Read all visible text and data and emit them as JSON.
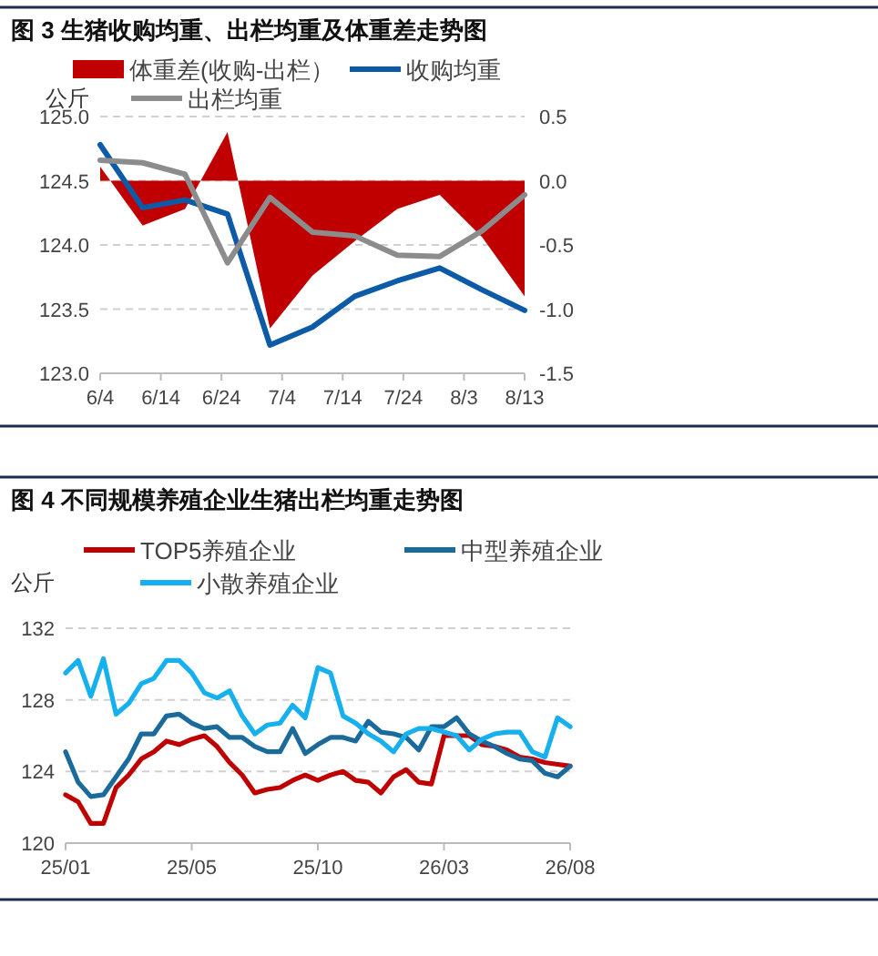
{
  "chart_data": [
    {
      "type": "line",
      "title": "图 3 生猪收购均重、出栏均重及体重差走势图",
      "ylabel": "公斤",
      "legend": "top",
      "grid": "y",
      "x": [
        "--06-04",
        "--06-11",
        "--06-18",
        "--06-25",
        "--07-02",
        "--07-09",
        "--07-16",
        "--07-23",
        "--07-30",
        "--08-06",
        "--08-13"
      ],
      "xlim": [
        "--06-04",
        "--08-13"
      ],
      "xticks": [
        {
          "value": "--06-04",
          "label": "6/4"
        },
        {
          "value": "--06-14",
          "label": "6/14"
        },
        {
          "value": "--06-24",
          "label": "6/24"
        },
        {
          "value": "--07-04",
          "label": "7/4"
        },
        {
          "value": "--07-14",
          "label": "7/14"
        },
        {
          "value": "--07-24",
          "label": "7/24"
        },
        {
          "value": "--08-03",
          "label": "8/3"
        },
        {
          "value": "--08-13",
          "label": "8/13"
        }
      ],
      "ylim": [
        123,
        125
      ],
      "yticks": [
        {
          "value": 123,
          "label": "123.0"
        },
        {
          "value": 123.5,
          "label": "123.5"
        },
        {
          "value": 124,
          "label": "124.0"
        },
        {
          "value": 124.5,
          "label": "124.5"
        },
        {
          "value": 125,
          "label": "125.0"
        }
      ],
      "y2lim": [
        -1.5,
        0.5
      ],
      "y2ticks": [
        {
          "value": -1.5,
          "label": "-1.5"
        },
        {
          "value": -1,
          "label": "-1.0"
        },
        {
          "value": -0.5,
          "label": "-0.5"
        },
        {
          "value": 0,
          "label": "0.0"
        },
        {
          "value": 0.5,
          "label": "0.5"
        }
      ],
      "series": [
        {
          "name": "体重差(收购-出栏）",
          "type": "area",
          "axis": "y2",
          "color": "#c00000",
          "values": [
            0.11,
            -0.35,
            -0.22,
            0.38,
            -1.15,
            -0.74,
            -0.47,
            -0.22,
            -0.11,
            -0.44,
            -0.9
          ]
        },
        {
          "name": "收购均重",
          "type": "line",
          "color": "#0d5aa7",
          "values": [
            124.78,
            124.29,
            124.35,
            124.24,
            123.22,
            123.36,
            123.6,
            123.72,
            123.82,
            123.65,
            123.49
          ]
        },
        {
          "name": "出栏均重",
          "type": "line",
          "color": "#8c8c8c",
          "values": [
            124.66,
            124.64,
            124.55,
            123.86,
            124.37,
            124.1,
            124.07,
            123.92,
            123.91,
            124.11,
            124.39
          ]
        }
      ]
    },
    {
      "type": "line",
      "title": "图 4 不同规模养殖企业生猪出栏均重走势图",
      "ylabel": "公斤",
      "legend": "top",
      "grid": "y",
      "categories": [
        "25/01",
        null,
        null,
        null,
        null,
        null,
        null,
        null,
        null,
        null,
        "25/05",
        null,
        null,
        null,
        null,
        null,
        null,
        null,
        null,
        null,
        "25/10",
        null,
        null,
        null,
        null,
        null,
        null,
        null,
        null,
        null,
        "26/03",
        null,
        null,
        null,
        null,
        null,
        null,
        null,
        null,
        null,
        "26/08"
      ],
      "ylim": [
        120,
        132
      ],
      "yticks": [
        120,
        124,
        128,
        132
      ],
      "series": [
        {
          "name": "TOP5养殖企业",
          "color": "#c00000",
          "values": [
            122.7,
            122.3,
            121.1,
            121.1,
            123.1,
            123.8,
            124.7,
            125.1,
            125.7,
            125.5,
            125.8,
            126.0,
            125.4,
            124.5,
            123.8,
            122.8,
            123.0,
            123.1,
            123.5,
            123.8,
            123.5,
            123.8,
            124.0,
            123.5,
            123.4,
            122.8,
            123.7,
            124.1,
            123.4,
            123.3,
            126.0,
            126.0,
            126.0,
            125.5,
            125.4,
            125.2,
            124.8,
            124.7,
            124.5,
            124.4,
            124.3
          ]
        },
        {
          "name": "中型养殖企业",
          "color": "#1b6a9c",
          "values": [
            125.1,
            123.4,
            122.6,
            122.7,
            123.7,
            124.7,
            126.1,
            126.1,
            127.1,
            127.2,
            126.7,
            126.4,
            126.5,
            125.9,
            125.9,
            125.4,
            125.1,
            125.1,
            126.4,
            125.0,
            125.5,
            125.9,
            125.9,
            125.7,
            126.8,
            126.2,
            126.1,
            125.9,
            125.2,
            126.5,
            126.5,
            127.0,
            126.1,
            125.7,
            125.4,
            125.0,
            124.7,
            124.6,
            123.9,
            123.7,
            124.3
          ]
        },
        {
          "name": "小散养殖企业",
          "color": "#16b0ee",
          "values": [
            129.5,
            130.2,
            128.2,
            130.3,
            127.2,
            127.8,
            128.9,
            129.2,
            130.2,
            130.2,
            129.5,
            128.4,
            128.1,
            128.5,
            127.1,
            126.1,
            126.6,
            126.7,
            127.7,
            127.0,
            129.8,
            129.5,
            127.1,
            126.7,
            126.1,
            125.7,
            125.1,
            126.1,
            126.4,
            126.4,
            126.2,
            126.0,
            125.2,
            125.8,
            126.1,
            126.2,
            126.2,
            125.1,
            124.8,
            127.0,
            126.5
          ]
        }
      ]
    }
  ]
}
